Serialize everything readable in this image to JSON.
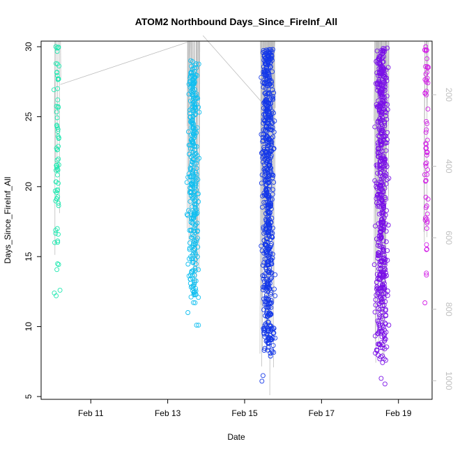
{
  "chart_data": {
    "type": "scatter",
    "title": "ATOM2 Northbound Days_Since_FireInf_All",
    "xlabel": "Date",
    "ylabel": "Days_Since_FireInf_All",
    "x_is_date": true,
    "x_ticks": [
      "Feb 11",
      "Feb 13",
      "Feb 15",
      "Feb 17",
      "Feb 19"
    ],
    "xlim": [
      "2024-02-09T17:00",
      "2024-02-19T21:00"
    ],
    "ylim": [
      4.8,
      30.4
    ],
    "y_ticks": [
      5,
      10,
      15,
      20,
      25,
      30
    ],
    "secondary_axis": {
      "position": "right",
      "color": "#bfbfbf",
      "ticks": [
        200,
        400,
        600,
        800,
        1000
      ],
      "ylim": [
        50,
        1052
      ]
    },
    "grid": false,
    "legend": "none",
    "marker": "open-circle",
    "line_color": "#bebebe",
    "series": [
      {
        "color": "#1fe8b0",
        "x_range": [
          "2024-02-10T01:00",
          "2024-02-10T05:00"
        ],
        "n_points": 70,
        "y_range": [
          12.2,
          30.0
        ],
        "points_sample": [
          {
            "x": "2024-02-10T01:12",
            "y": 12.4
          },
          {
            "x": "2024-02-10T02:24",
            "y": 12.2
          },
          {
            "x": "2024-02-10T04:48",
            "y": 12.6
          },
          {
            "x": "2024-02-10T01:30",
            "y": 16.0
          },
          {
            "x": "2024-02-10T02:10",
            "y": 30.0
          },
          {
            "x": "2024-02-10T03:00",
            "y": 29.9
          }
        ]
      },
      {
        "color": "#12bff0",
        "x_range": [
          "2024-02-13T12:00",
          "2024-02-13T20:00"
        ],
        "n_points": 330,
        "y_range": [
          10.1,
          29.0
        ],
        "points_sample": [
          {
            "x": "2024-02-13T12:36",
            "y": 11.0
          },
          {
            "x": "2024-02-13T18:00",
            "y": 10.1
          },
          {
            "x": "2024-02-13T19:12",
            "y": 10.1
          },
          {
            "x": "2024-02-13T16:48",
            "y": 12.5
          },
          {
            "x": "2024-02-13T14:24",
            "y": 29.0
          }
        ]
      },
      {
        "color": "#1438e8",
        "x_range": [
          "2024-02-15T10:00",
          "2024-02-15T19:00"
        ],
        "n_points": 620,
        "y_range": [
          6.1,
          29.8
        ],
        "points_sample": [
          {
            "x": "2024-02-15T10:48",
            "y": 6.1
          },
          {
            "x": "2024-02-15T11:30",
            "y": 6.5
          },
          {
            "x": "2024-02-15T17:12",
            "y": 8.2
          },
          {
            "x": "2024-02-15T17:36",
            "y": 29.8
          }
        ]
      },
      {
        "color": "#7a10e8",
        "x_range": [
          "2024-02-18T09:00",
          "2024-02-18T18:00"
        ],
        "n_points": 560,
        "y_range": [
          5.9,
          29.9
        ],
        "points_sample": [
          {
            "x": "2024-02-18T09:36",
            "y": 8.1
          },
          {
            "x": "2024-02-18T13:12",
            "y": 6.3
          },
          {
            "x": "2024-02-18T15:36",
            "y": 5.9
          },
          {
            "x": "2024-02-18T17:00",
            "y": 29.9
          }
        ]
      },
      {
        "color": "#d21ee6",
        "x_range": [
          "2024-02-19T16:00",
          "2024-02-19T19:00"
        ],
        "n_points": 60,
        "y_range": [
          11.7,
          30.0
        ],
        "points_sample": [
          {
            "x": "2024-02-19T16:30",
            "y": 11.7
          },
          {
            "x": "2024-02-19T17:30",
            "y": 15.5
          },
          {
            "x": "2024-02-19T17:00",
            "y": 30.0
          }
        ]
      }
    ]
  }
}
